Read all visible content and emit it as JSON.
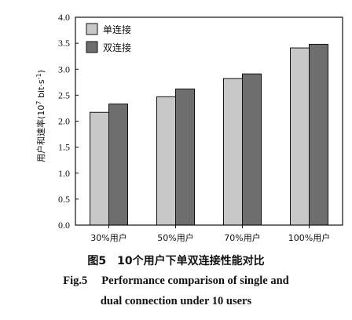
{
  "chart_data": {
    "type": "bar",
    "categories": [
      "30%用户",
      "50%用户",
      "70%用户",
      "100%用户"
    ],
    "series": [
      {
        "name": "单连接",
        "values": [
          2.17,
          2.47,
          2.82,
          3.41
        ],
        "color": "#c8c8c8"
      },
      {
        "name": "双连接",
        "values": [
          2.33,
          2.62,
          2.91,
          3.48
        ],
        "color": "#6e6e6e"
      }
    ],
    "ylabel_main": "用户和速率(10",
    "ylabel_exp": "7",
    "ylabel_unit": " bit·s",
    "ylabel_unit_exp": "-1",
    "ylabel_close": ")",
    "ylim": [
      0,
      4.0
    ],
    "yticks": [
      "0.0",
      "0.5",
      "1.0",
      "1.5",
      "2.0",
      "2.5",
      "3.0",
      "3.5",
      "4.0"
    ],
    "grid": false,
    "legend_position": "top-left"
  },
  "caption": {
    "cn": "图5　10个用户下单双连接性能对比",
    "en_num": "Fig.5",
    "en_line1": "Performance comparison of single and",
    "en_line2": "dual connection under 10 users"
  }
}
